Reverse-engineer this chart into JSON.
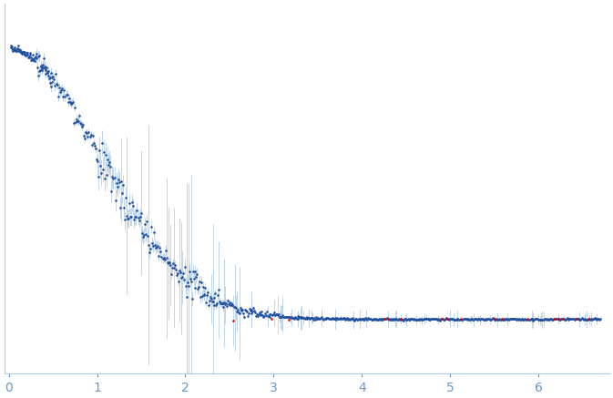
{
  "title": "",
  "xlabel": "",
  "ylabel": "",
  "xlim": [
    -0.05,
    6.8
  ],
  "bg_color": "#ffffff",
  "dot_color": "#1f4e9e",
  "error_color": "#b8d0e8",
  "outlier_color": "#cc0000",
  "dot_size": 3.5,
  "tick_label_color": "#6699cc",
  "spine_color": "#aaccee",
  "seed": 17
}
